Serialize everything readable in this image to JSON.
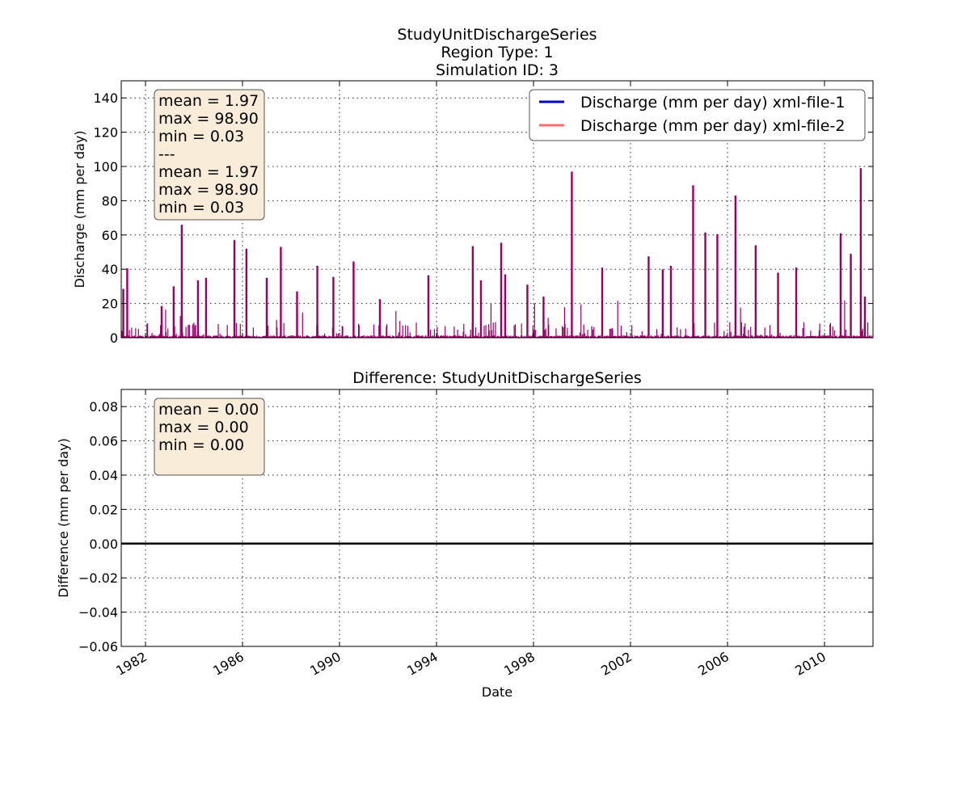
{
  "top": {
    "title_lines": [
      "StudyUnitDischargeSeries",
      "Region Type: 1",
      "Simulation ID: 3"
    ],
    "ylabel": "Discharge (mm per day)",
    "ylim": [
      0,
      150
    ],
    "yticks": [
      "0",
      "20",
      "40",
      "60",
      "80",
      "100",
      "120",
      "140"
    ],
    "stats": [
      "mean = 1.97",
      "max = 98.90",
      "min = 0.03",
      "---",
      "mean = 1.97",
      "max = 98.90",
      "min = 0.03"
    ],
    "legend": [
      {
        "label": "Discharge (mm per day) xml-file-1",
        "color": "#0000cc"
      },
      {
        "label": "Discharge (mm per day) xml-file-2",
        "color": "#ff6b6b"
      }
    ]
  },
  "bottom": {
    "title": "Difference: StudyUnitDischargeSeries",
    "ylabel": "Difference (mm per day)",
    "ylim": [
      -0.06,
      0.09
    ],
    "yticks": [
      "−0.06",
      "−0.04",
      "−0.02",
      "0.00",
      "0.02",
      "0.04",
      "0.06",
      "0.08"
    ],
    "stats": [
      "mean = 0.00",
      "max = 0.00",
      "min = 0.00"
    ]
  },
  "xlabel": "Date",
  "xticks": [
    "1982",
    "1986",
    "1990",
    "1994",
    "1998",
    "2002",
    "2006",
    "2010"
  ],
  "colors": {
    "series_overlap": "#990066",
    "difference_line": "#000000",
    "stats_box": "#f9ecd9"
  },
  "chart_data": [
    {
      "type": "line",
      "title": "StudyUnitDischargeSeries\nRegion Type: 1\nSimulation ID: 3",
      "xlabel": "",
      "ylabel": "Discharge (mm per day)",
      "xlim": [
        "1981-01-01",
        "2012-01-01"
      ],
      "ylim": [
        0,
        150
      ],
      "grid": true,
      "legend_position": "top-right",
      "series": [
        {
          "name": "Discharge (mm per day) xml-file-1",
          "color": "#0000cc"
        },
        {
          "name": "Discharge (mm per day) xml-file-2",
          "color": "#ff6b6b"
        }
      ],
      "peaks": {
        "x": [
          "1981-02-01",
          "1981-04-01",
          "1982-09-01",
          "1983-03-01",
          "1983-07-01",
          "1984-03-01",
          "1984-07-01",
          "1985-09-01",
          "1986-03-01",
          "1987-01-01",
          "1987-08-01",
          "1988-04-01",
          "1989-02-01",
          "1989-10-01",
          "1990-08-01",
          "1991-09-01",
          "1993-09-01",
          "1995-07-01",
          "1995-11-01",
          "1996-09-01",
          "1996-11-01",
          "1997-10-01",
          "1998-06-01",
          "1999-08-01",
          "2000-11-01",
          "2002-10-01",
          "2003-05-01",
          "2003-09-01",
          "2004-08-01",
          "2005-02-01",
          "2005-08-01",
          "2006-05-01",
          "2007-03-01",
          "2008-02-01",
          "2008-11-01",
          "2010-09-01",
          "2011-02-01",
          "2011-07-01",
          "2011-09-01"
        ],
        "y": [
          28.5,
          40.5,
          18.5,
          30,
          66,
          33.5,
          35,
          57,
          52,
          35,
          53,
          27,
          42,
          35.5,
          44.5,
          22.5,
          36.5,
          53.5,
          33.5,
          55.5,
          37,
          31,
          24,
          97,
          41,
          47.5,
          40,
          42,
          89,
          61.5,
          60.5,
          83,
          54,
          38,
          41,
          61,
          49,
          99,
          24
        ]
      },
      "summary": {
        "mean": 1.97,
        "max": 98.9,
        "min": 0.03
      }
    },
    {
      "type": "line",
      "title": "Difference: StudyUnitDischargeSeries",
      "xlabel": "Date",
      "ylabel": "Difference (mm per day)",
      "xlim": [
        "1981-01-01",
        "2012-01-01"
      ],
      "ylim": [
        -0.06,
        0.09
      ],
      "grid": true,
      "x": [
        "1981-01-01",
        "2012-01-01"
      ],
      "y": [
        0.0,
        0.0
      ],
      "summary": {
        "mean": 0.0,
        "max": 0.0,
        "min": 0.0
      }
    }
  ]
}
